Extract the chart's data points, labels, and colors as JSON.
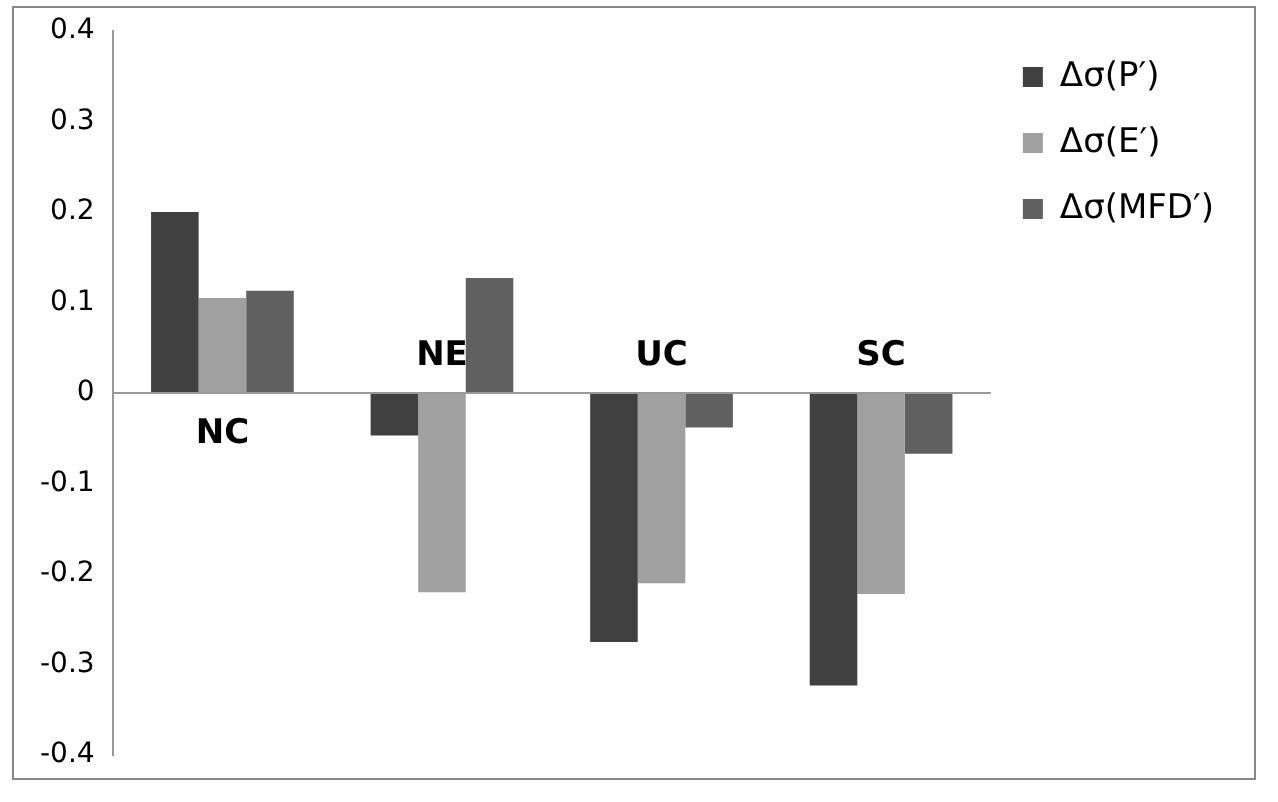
{
  "chart_data": {
    "type": "bar",
    "categories": [
      "NC",
      "NE",
      "UC",
      "SC"
    ],
    "series": [
      {
        "name": "Δσ(P′)",
        "color": "#404040",
        "values": [
          0.2,
          -0.047,
          -0.275,
          -0.323
        ]
      },
      {
        "name": "Δσ(E′)",
        "color": "#a0a0a0",
        "values": [
          0.105,
          -0.22,
          -0.21,
          -0.222
        ]
      },
      {
        "name": "Δσ(MFD′)",
        "color": "#606060",
        "values": [
          0.113,
          0.127,
          -0.038,
          -0.067
        ]
      }
    ],
    "ylim": [
      -0.4,
      0.4
    ],
    "yticks": [
      -0.4,
      -0.3,
      -0.2,
      -0.1,
      0,
      0.1,
      0.2,
      0.3,
      0.4
    ],
    "grid": false,
    "legend": "top right"
  }
}
